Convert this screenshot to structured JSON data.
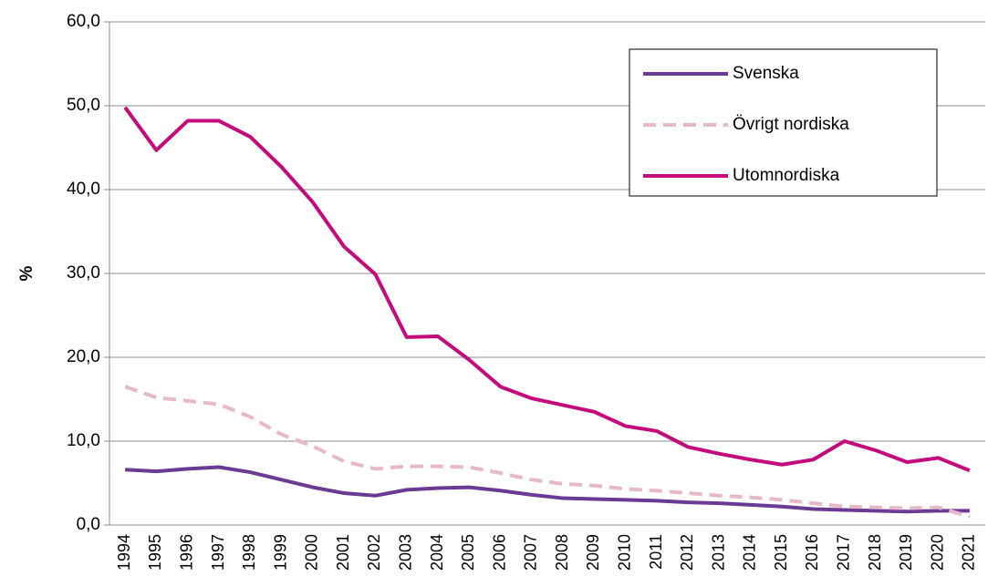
{
  "chart_data": {
    "type": "line",
    "y_label": "%",
    "categories": [
      "1994",
      "1995",
      "1996",
      "1997",
      "1998",
      "1999",
      "2000",
      "2001",
      "2002",
      "2003",
      "2004",
      "2005",
      "2006",
      "2007",
      "2008",
      "2009",
      "2010",
      "2011",
      "2012",
      "2013",
      "2014",
      "2015",
      "2016",
      "2017",
      "2018",
      "2019",
      "2020",
      "2021"
    ],
    "series": [
      {
        "name": "Svenska",
        "color": "#6b3a92",
        "dash": false,
        "values": [
          6.6,
          6.4,
          6.7,
          6.9,
          6.3,
          5.4,
          4.5,
          3.8,
          3.5,
          4.2,
          4.4,
          4.5,
          4.1,
          3.6,
          3.2,
          3.1,
          3.0,
          2.9,
          2.7,
          2.6,
          2.4,
          2.2,
          1.9,
          1.8,
          1.7,
          1.6,
          1.7,
          1.7
        ]
      },
      {
        "name": "Övrigt nordiska",
        "color": "#e6b8c8",
        "dash": true,
        "values": [
          16.5,
          15.2,
          14.8,
          14.4,
          12.9,
          10.8,
          9.4,
          7.6,
          6.7,
          7.0,
          7.0,
          6.9,
          6.2,
          5.4,
          4.9,
          4.7,
          4.3,
          4.1,
          3.8,
          3.5,
          3.3,
          3.0,
          2.6,
          2.2,
          2.1,
          2.0,
          2.1,
          1.0
        ]
      },
      {
        "name": "Utomnordiska",
        "color": "#c40a7c",
        "dash": false,
        "values": [
          49.8,
          44.7,
          48.2,
          48.2,
          46.3,
          42.7,
          38.5,
          33.2,
          29.9,
          22.4,
          22.5,
          19.7,
          16.5,
          15.1,
          14.3,
          13.5,
          11.8,
          11.2,
          9.3,
          8.5,
          7.8,
          7.2,
          7.8,
          10.0,
          8.9,
          7.5,
          8.0,
          6.5
        ]
      }
    ],
    "ylim": [
      0,
      60
    ],
    "yticks": [
      {
        "value": 0,
        "label": "0,0"
      },
      {
        "value": 10,
        "label": "10,0"
      },
      {
        "value": 20,
        "label": "20,0"
      },
      {
        "value": 30,
        "label": "30,0"
      },
      {
        "value": 40,
        "label": "40,0"
      },
      {
        "value": 50,
        "label": "50,0"
      },
      {
        "value": 60,
        "label": "60,0"
      }
    ],
    "grid": true,
    "legend": "top-right"
  }
}
